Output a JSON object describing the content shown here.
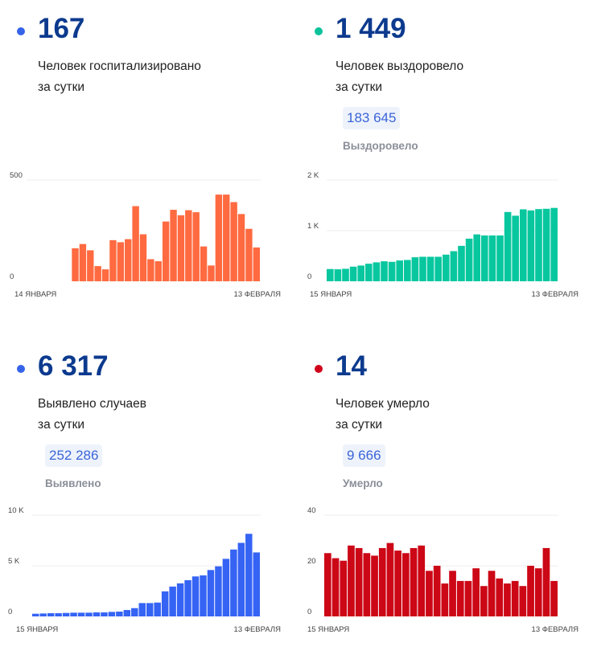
{
  "panels": [
    {
      "value": "167",
      "label_line1": "Человек госпитализировано",
      "label_line2": "за сутки",
      "dot_color": "#3563e9",
      "chart_color": "#ff6a40"
    },
    {
      "value": "1 449",
      "label_line1": "Человек выздоровело",
      "label_line2": "за сутки",
      "total": "183 645",
      "total_label": "Выздоровело",
      "dot_color": "#08c29b",
      "chart_color": "#08c79f"
    },
    {
      "value": "6 317",
      "label_line1": "Выявлено случаев",
      "label_line2": "за сутки",
      "total": "252 286",
      "total_label": "Выявлено",
      "dot_color": "#3563e9",
      "chart_color": "#3563f4"
    },
    {
      "value": "14",
      "label_line1": "Человек умерло",
      "label_line2": "за сутки",
      "total": "9 666",
      "total_label": "Умерло",
      "dot_color": "#d0021b",
      "chart_color": "#cc0716"
    }
  ],
  "chart_data": [
    {
      "type": "bar",
      "ylim": [
        0,
        500
      ],
      "yticks": [
        "0",
        "500"
      ],
      "ytick_values": [
        0,
        500
      ],
      "x_start_label": "14 ЯНВАРЯ",
      "x_end_label": "13 ФЕВРАЛЯ",
      "grid": true,
      "values": [
        null,
        null,
        null,
        null,
        null,
        null,
        163,
        184,
        153,
        75,
        59,
        203,
        193,
        208,
        371,
        232,
        109,
        99,
        295,
        353,
        326,
        351,
        341,
        172,
        78,
        428,
        428,
        391,
        332,
        259,
        167
      ]
    },
    {
      "type": "bar",
      "ylim": [
        0,
        2000
      ],
      "yticks": [
        "0",
        "1 K",
        "2 K"
      ],
      "ytick_values": [
        0,
        1000,
        2000
      ],
      "x_start_label": "15 ЯНВАРЯ",
      "x_end_label": "13 ФЕВРАЛЯ",
      "grid": true,
      "values": [
        242,
        237,
        247,
        289,
        311,
        347,
        374,
        395,
        384,
        411,
        421,
        474,
        484,
        484,
        484,
        526,
        595,
        700,
        842,
        926,
        905,
        905,
        905,
        1368,
        1295,
        1421,
        1400,
        1426,
        1432,
        1449
      ]
    },
    {
      "type": "bar",
      "ylim": [
        0,
        10000
      ],
      "yticks": [
        "0",
        "5 K",
        "10 K"
      ],
      "ytick_values": [
        0,
        5000,
        10000
      ],
      "x_start_label": "15 ЯНВАРЯ",
      "x_end_label": "13 ФЕВРАЛЯ",
      "grid": true,
      "values": [
        263,
        289,
        316,
        316,
        342,
        368,
        368,
        368,
        395,
        395,
        447,
        474,
        632,
        816,
        1316,
        1316,
        1368,
        2474,
        2947,
        3263,
        3579,
        3947,
        4053,
        4579,
        4947,
        5684,
        6605,
        7263,
        8158,
        6317
      ]
    },
    {
      "type": "bar",
      "ylim": [
        0,
        40
      ],
      "yticks": [
        "0",
        "20",
        "40"
      ],
      "ytick_values": [
        0,
        20,
        40
      ],
      "x_start_label": "15 ЯНВАРЯ",
      "x_end_label": "13 ФЕВРАЛЯ",
      "grid": true,
      "values": [
        25,
        23,
        22,
        28,
        27,
        25,
        24,
        27,
        29,
        26,
        25,
        27,
        28,
        18,
        20,
        13,
        18,
        14,
        14,
        19,
        12,
        18,
        15,
        13,
        14,
        12,
        20,
        19,
        27,
        14
      ]
    }
  ]
}
